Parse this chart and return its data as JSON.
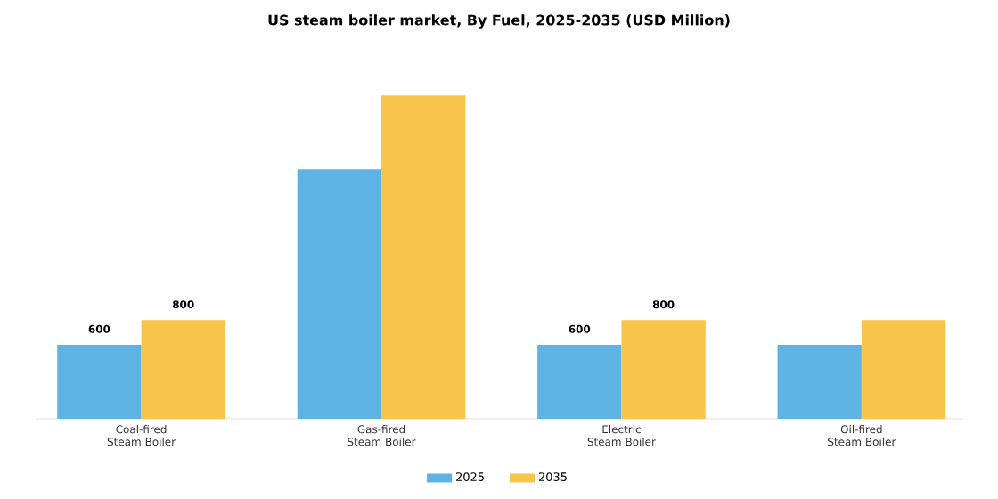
{
  "chart_data": {
    "type": "bar",
    "title": "US steam boiler market, By Fuel, 2025-2035 (USD Million)",
    "categories": [
      "Coal-fired Steam Boiler",
      "Gas-fired Steam Boiler",
      "Electric Steam Boiler",
      "Oil-fired Steam Boiler"
    ],
    "series": [
      {
        "name": "2025",
        "color": "#5db3e6",
        "values": [
          600,
          2020,
          600,
          600
        ],
        "value_labels": [
          "600",
          null,
          "600",
          null
        ]
      },
      {
        "name": "2035",
        "color": "#f9c44a",
        "values": [
          800,
          2620,
          800,
          800
        ],
        "value_labels": [
          "800",
          null,
          "800",
          null
        ]
      }
    ],
    "legend": "bottom"
  }
}
